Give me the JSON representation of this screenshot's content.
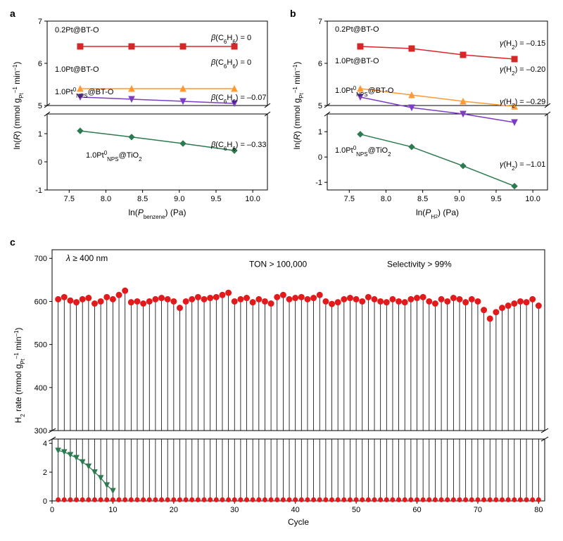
{
  "figure": {
    "background_color": "#ffffff",
    "font_family": "Arial"
  },
  "panel_a": {
    "letter": "a",
    "type": "scatter-line",
    "xlabel": "ln(P_benzene) (Pa)",
    "ylabel": "ln(R) (mmol g_Pt⁻¹ min⁻¹)",
    "xlim": [
      7.2,
      10.2
    ],
    "xticks": [
      7.5,
      8.0,
      8.5,
      9.0,
      9.5,
      10.0
    ],
    "y_upper_lim": [
      5.0,
      7.0
    ],
    "y_upper_ticks": [
      5,
      6,
      7
    ],
    "y_lower_lim": [
      -1.0,
      1.7
    ],
    "y_lower_ticks": [
      -1,
      0,
      1
    ],
    "title_fontsize": 11,
    "label_fontsize": 12,
    "tick_fontsize": 11,
    "line_width": 1.5,
    "marker_size": 8,
    "series": [
      {
        "name": "0.2Pt@BT-O",
        "label": "0.2Pt@BT-O",
        "annotation": "β(C₆H₆) = 0",
        "color": "#d62728",
        "marker": "square",
        "region": "upper",
        "x": [
          7.65,
          8.35,
          9.05,
          9.75
        ],
        "y": [
          6.4,
          6.4,
          6.4,
          6.4
        ]
      },
      {
        "name": "1.0Pt@BT-O",
        "label": "1.0Pt@BT-O",
        "annotation": "β(C₆H₆) = 0",
        "color": "#ff9933",
        "marker": "triangle-up",
        "region": "upper",
        "x": [
          7.65,
          8.35,
          9.05,
          9.75
        ],
        "y": [
          5.4,
          5.4,
          5.4,
          5.4
        ]
      },
      {
        "name": "1.0Pt0NPS@BT-O",
        "label": "1.0Pt⁰_NPS@BT-O",
        "annotation": "β(C₆H₆) = –0.07",
        "color": "#7d3cc8",
        "marker": "triangle-down",
        "region": "upper",
        "x": [
          7.65,
          8.35,
          9.05,
          9.75
        ],
        "y": [
          5.2,
          5.15,
          5.1,
          5.05
        ]
      },
      {
        "name": "1.0Pt0NPS@TiO2",
        "label": "1.0Pt⁰_NPS@TiO₂",
        "annotation": "β(C₆H₆) = –0.33",
        "color": "#2c7a4f",
        "marker": "diamond",
        "region": "lower",
        "x": [
          7.65,
          8.35,
          9.05,
          9.75
        ],
        "y": [
          1.1,
          0.88,
          0.65,
          0.4
        ]
      }
    ]
  },
  "panel_b": {
    "letter": "b",
    "type": "scatter-line",
    "xlabel": "ln(P_H₂) (Pa)",
    "ylabel": "ln(R) (mmol g_Pt⁻¹ min⁻¹)",
    "xlim": [
      7.2,
      10.2
    ],
    "xticks": [
      7.5,
      8.0,
      8.5,
      9.0,
      9.5,
      10.0
    ],
    "y_upper_lim": [
      5.0,
      7.0
    ],
    "y_upper_ticks": [
      5,
      6,
      7
    ],
    "y_lower_lim": [
      -1.3,
      1.7
    ],
    "y_lower_ticks": [
      -1,
      0,
      1
    ],
    "title_fontsize": 11,
    "label_fontsize": 12,
    "tick_fontsize": 11,
    "line_width": 1.5,
    "marker_size": 8,
    "series": [
      {
        "name": "0.2Pt@BT-O",
        "label": "0.2Pt@BT-O",
        "annotation": "γ(H₂) = –0.15",
        "color": "#d62728",
        "marker": "square",
        "region": "upper",
        "x": [
          7.65,
          8.35,
          9.05,
          9.75
        ],
        "y": [
          6.4,
          6.35,
          6.2,
          6.1
        ]
      },
      {
        "name": "1.0Pt@BT-O",
        "label": "1.0Pt@BT-O",
        "annotation": "γ(H₂) = –0.20",
        "color": "#ff9933",
        "marker": "triangle-up",
        "region": "upper",
        "x": [
          7.65,
          8.35,
          9.05,
          9.75
        ],
        "y": [
          5.4,
          5.25,
          5.1,
          4.98
        ]
      },
      {
        "name": "1.0Pt0NPS@BT-O",
        "label": "1.0Pt⁰_NPS@BT-O",
        "annotation": "γ(H₂) = –0.29",
        "color": "#7d3cc8",
        "marker": "triangle-down",
        "region": "upper",
        "x": [
          7.65,
          8.35,
          9.05,
          9.75
        ],
        "y": [
          5.2,
          4.95,
          4.8,
          4.6
        ]
      },
      {
        "name": "1.0Pt0NPS@TiO2",
        "label": "1.0Pt⁰_NPS@TiO₂",
        "annotation": "γ(H₂) = –1.01",
        "color": "#2c7a4f",
        "marker": "diamond",
        "region": "lower",
        "x": [
          7.65,
          8.35,
          9.05,
          9.75
        ],
        "y": [
          0.9,
          0.4,
          -0.35,
          -1.15
        ]
      }
    ]
  },
  "panel_c": {
    "letter": "c",
    "type": "stem-scatter",
    "xlabel": "Cycle",
    "ylabel": "H₂ rate (mmol g_Pt⁻¹ min⁻¹)",
    "xlim": [
      0,
      81
    ],
    "xticks": [
      0,
      10,
      20,
      30,
      40,
      50,
      60,
      70,
      80
    ],
    "y_upper_lim": [
      300,
      720
    ],
    "y_upper_ticks": [
      300,
      400,
      500,
      600,
      700
    ],
    "y_lower_lim": [
      0,
      4.3
    ],
    "y_lower_ticks": [
      0,
      2,
      4
    ],
    "annotations": {
      "lambda": "λ ≥ 400 nm",
      "ton": "TON > 100,000",
      "selectivity": "Selectivity > 99%"
    },
    "red_color": "#e31a1c",
    "green_color": "#2c7a4f",
    "stem_color": "#000000",
    "marker_size": 6,
    "line_width": 0.8,
    "red_upper_y": [
      605,
      610,
      602,
      598,
      605,
      608,
      595,
      600,
      610,
      605,
      615,
      625,
      598,
      600,
      595,
      600,
      605,
      608,
      605,
      600,
      585,
      600,
      605,
      610,
      605,
      608,
      610,
      615,
      620,
      600,
      605,
      608,
      598,
      605,
      600,
      595,
      610,
      615,
      605,
      608,
      610,
      605,
      608,
      615,
      600,
      594,
      598,
      605,
      608,
      605,
      600,
      610,
      605,
      600,
      598,
      605,
      600,
      598,
      605,
      608,
      610,
      600,
      595,
      605,
      600,
      608,
      605,
      598,
      605,
      600,
      580,
      560,
      575,
      585,
      590,
      595,
      600,
      598,
      605,
      590
    ],
    "red_lower_y_value": 0.08,
    "green_series": {
      "marker": "triangle-down",
      "x": [
        1,
        2,
        3,
        4,
        5,
        6,
        7,
        8,
        9,
        10
      ],
      "y": [
        3.5,
        3.4,
        3.2,
        3.0,
        2.7,
        2.4,
        2.0,
        1.6,
        1.1,
        0.7
      ]
    }
  }
}
